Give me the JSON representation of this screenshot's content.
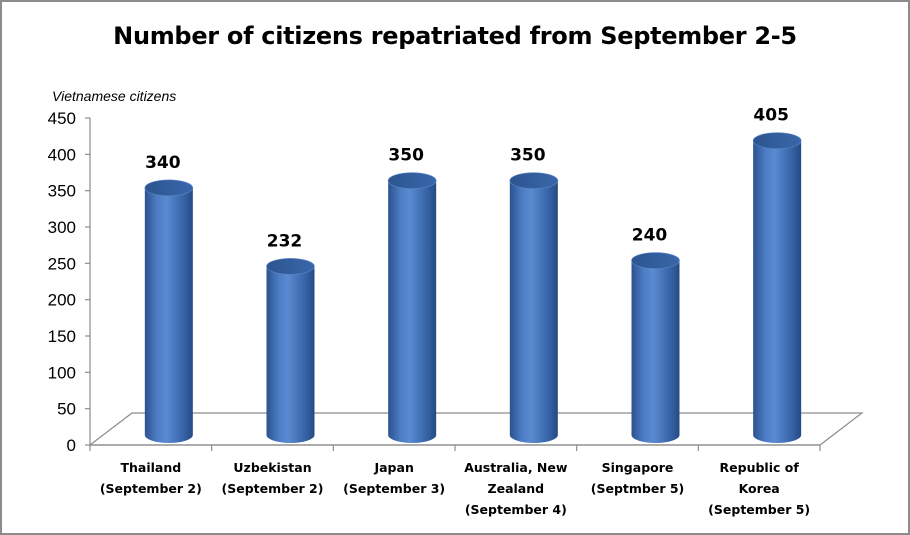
{
  "chart_data": {
    "type": "bar",
    "title": "Number of citizens repatriated from September 2-5",
    "ylabel": "Vietnamese citizens",
    "xlabel": "",
    "ylim": [
      0,
      450
    ],
    "yticks": [
      0,
      50,
      100,
      150,
      200,
      250,
      300,
      350,
      400,
      450
    ],
    "categories": [
      "Thailand (September 2)",
      "Uzbekistan (September 2)",
      "Japan (September 3)",
      "Australia, New Zealand (September 4)",
      "Singapore (Septmber 5)",
      "Republic of Korea (September 5)"
    ],
    "category_lines": [
      [
        "Thailand",
        "(September 2)"
      ],
      [
        "Uzbekistan",
        "(September 2)"
      ],
      [
        "Japan",
        "(September 3)"
      ],
      [
        "Australia, New",
        "Zealand",
        "(September 4)"
      ],
      [
        "Singapore",
        "(Septmber 5)"
      ],
      [
        "Republic of",
        "Korea",
        "(September 5)"
      ]
    ],
    "values": [
      340,
      232,
      350,
      350,
      240,
      405
    ],
    "data_labels": [
      "340",
      "232",
      "350",
      "350",
      "240",
      "405"
    ],
    "bar_color": "#3f6fb6",
    "grid": false,
    "legend": "none",
    "style": "3d-cylinder"
  }
}
